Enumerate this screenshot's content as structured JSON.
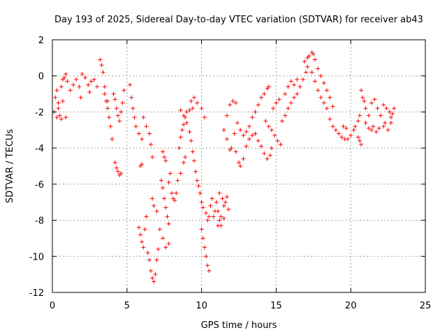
{
  "chart_data": {
    "type": "scatter",
    "title": "Day 193 of 2025, Sidereal Day-to-day VTEC variation (SDTVAR) for receiver ab43",
    "xlabel": "GPS time / hours",
    "ylabel": "SDTVAR / TECUs",
    "xlim": [
      0,
      25
    ],
    "ylim": [
      -12,
      2
    ],
    "xticks": [
      0,
      5,
      10,
      15,
      20,
      25
    ],
    "yticks": [
      -12,
      -10,
      -8,
      -6,
      -4,
      -2,
      0,
      2
    ],
    "grid": true,
    "marker": "+",
    "series": [
      {
        "name": "SDTVAR",
        "color": "#ff0000",
        "points": [
          [
            0.1,
            -2.0
          ],
          [
            0.2,
            -1.2
          ],
          [
            0.3,
            -0.8
          ],
          [
            0.4,
            -1.5
          ],
          [
            0.5,
            -2.2
          ],
          [
            0.6,
            -0.6
          ],
          [
            0.7,
            -0.2
          ],
          [
            0.8,
            -0.1
          ],
          [
            0.9,
            0.1
          ],
          [
            1.0,
            -0.3
          ],
          [
            0.3,
            -2.3
          ],
          [
            0.6,
            -2.4
          ],
          [
            0.9,
            -2.3
          ],
          [
            0.4,
            -1.8
          ],
          [
            0.7,
            -1.4
          ],
          [
            1.2,
            -0.8
          ],
          [
            1.4,
            -0.5
          ],
          [
            1.6,
            -0.2
          ],
          [
            1.8,
            -0.6
          ],
          [
            2.0,
            0.1
          ],
          [
            2.2,
            -0.1
          ],
          [
            2.4,
            -0.5
          ],
          [
            2.6,
            -0.3
          ],
          [
            2.8,
            -0.2
          ],
          [
            3.0,
            -0.6
          ],
          [
            1.9,
            -1.2
          ],
          [
            2.5,
            -0.9
          ],
          [
            3.2,
            0.9
          ],
          [
            3.3,
            0.6
          ],
          [
            3.4,
            0.2
          ],
          [
            3.5,
            -0.6
          ],
          [
            3.6,
            -1.4
          ],
          [
            3.7,
            -1.8
          ],
          [
            3.8,
            -2.3
          ],
          [
            3.9,
            -2.8
          ],
          [
            4.0,
            -3.5
          ],
          [
            3.5,
            -1.0
          ],
          [
            3.7,
            -1.4
          ],
          [
            4.1,
            -1.0
          ],
          [
            4.2,
            -1.3
          ],
          [
            4.3,
            -1.8
          ],
          [
            4.4,
            -2.2
          ],
          [
            4.5,
            -2.5
          ],
          [
            4.6,
            -2.0
          ],
          [
            4.7,
            -1.5
          ],
          [
            4.8,
            -0.8
          ],
          [
            4.2,
            -4.8
          ],
          [
            4.3,
            -5.1
          ],
          [
            4.4,
            -5.3
          ],
          [
            4.5,
            -5.5
          ],
          [
            4.6,
            -5.4
          ],
          [
            5.2,
            -0.5
          ],
          [
            5.3,
            -1.2
          ],
          [
            5.4,
            -1.8
          ],
          [
            5.5,
            -2.3
          ],
          [
            5.6,
            -2.8
          ],
          [
            5.8,
            -3.2
          ],
          [
            6.0,
            -3.5
          ],
          [
            6.1,
            -2.3
          ],
          [
            6.3,
            -2.8
          ],
          [
            6.5,
            -3.2
          ],
          [
            6.6,
            -3.8
          ],
          [
            6.7,
            -4.5
          ],
          [
            5.9,
            -5.0
          ],
          [
            6.0,
            -4.9
          ],
          [
            5.8,
            -8.4
          ],
          [
            5.9,
            -8.8
          ],
          [
            6.0,
            -9.2
          ],
          [
            6.1,
            -9.5
          ],
          [
            6.2,
            -8.5
          ],
          [
            6.3,
            -7.8
          ],
          [
            6.4,
            -9.8
          ],
          [
            6.5,
            -10.2
          ],
          [
            6.6,
            -10.8
          ],
          [
            6.7,
            -11.2
          ],
          [
            6.8,
            -11.4
          ],
          [
            6.9,
            -11.0
          ],
          [
            7.0,
            -10.2
          ],
          [
            7.1,
            -9.6
          ],
          [
            6.7,
            -6.8
          ],
          [
            6.8,
            -7.2
          ],
          [
            7.0,
            -7.5
          ],
          [
            7.3,
            -5.8
          ],
          [
            7.4,
            -6.2
          ],
          [
            7.5,
            -6.8
          ],
          [
            7.6,
            -7.3
          ],
          [
            7.7,
            -7.8
          ],
          [
            7.8,
            -8.2
          ],
          [
            7.2,
            -8.5
          ],
          [
            7.4,
            -9.0
          ],
          [
            7.6,
            -9.5
          ],
          [
            7.8,
            -9.3
          ],
          [
            7.4,
            -4.2
          ],
          [
            7.5,
            -4.5
          ],
          [
            7.6,
            -4.7
          ],
          [
            7.8,
            -5.9
          ],
          [
            7.9,
            -5.4
          ],
          [
            8.0,
            -6.5
          ],
          [
            8.1,
            -6.8
          ],
          [
            8.2,
            -6.9
          ],
          [
            8.3,
            -6.5
          ],
          [
            8.4,
            -5.8
          ],
          [
            8.6,
            -5.4
          ],
          [
            8.8,
            -4.8
          ],
          [
            8.9,
            -4.5
          ],
          [
            8.5,
            -4.0
          ],
          [
            8.6,
            -3.4
          ],
          [
            8.7,
            -3.0
          ],
          [
            8.8,
            -2.7
          ],
          [
            8.9,
            -2.3
          ],
          [
            9.0,
            -2.0
          ],
          [
            9.2,
            -1.9
          ],
          [
            9.4,
            -1.8
          ],
          [
            8.6,
            -1.9
          ],
          [
            8.8,
            -2.2
          ],
          [
            9.0,
            -2.6
          ],
          [
            9.2,
            -3.1
          ],
          [
            9.3,
            -3.6
          ],
          [
            9.4,
            -4.2
          ],
          [
            9.5,
            -4.7
          ],
          [
            9.6,
            -5.3
          ],
          [
            9.7,
            -5.8
          ],
          [
            9.8,
            -6.1
          ],
          [
            9.9,
            -6.5
          ],
          [
            10.0,
            -7.0
          ],
          [
            10.1,
            -7.3
          ],
          [
            10.0,
            -8.5
          ],
          [
            10.1,
            -9.0
          ],
          [
            10.2,
            -9.5
          ],
          [
            10.3,
            -10.0
          ],
          [
            10.4,
            -10.5
          ],
          [
            10.5,
            -10.8
          ],
          [
            10.3,
            -7.6
          ],
          [
            10.4,
            -8.0
          ],
          [
            10.5,
            -7.8
          ],
          [
            10.6,
            -7.2
          ],
          [
            10.7,
            -6.8
          ],
          [
            9.3,
            -1.4
          ],
          [
            9.5,
            -1.2
          ],
          [
            9.7,
            -1.5
          ],
          [
            10.0,
            -1.8
          ],
          [
            10.2,
            -2.3
          ],
          [
            10.8,
            -7.8
          ],
          [
            10.9,
            -7.5
          ],
          [
            11.0,
            -7.0
          ],
          [
            11.1,
            -7.5
          ],
          [
            11.2,
            -8.0
          ],
          [
            11.3,
            -7.8
          ],
          [
            11.2,
            -6.5
          ],
          [
            11.4,
            -6.8
          ],
          [
            11.5,
            -7.2
          ],
          [
            11.6,
            -7.0
          ],
          [
            11.7,
            -6.7
          ],
          [
            11.8,
            -7.4
          ],
          [
            11.1,
            -8.3
          ],
          [
            11.3,
            -8.3
          ],
          [
            11.5,
            -7.9
          ],
          [
            11.5,
            -3.0
          ],
          [
            11.7,
            -3.5
          ],
          [
            11.9,
            -4.1
          ],
          [
            12.0,
            -4.0
          ],
          [
            12.2,
            -3.2
          ],
          [
            11.7,
            -2.2
          ],
          [
            11.9,
            -1.6
          ],
          [
            12.1,
            -1.4
          ],
          [
            12.3,
            -1.5
          ],
          [
            12.3,
            -4.2
          ],
          [
            12.5,
            -4.8
          ],
          [
            12.6,
            -5.0
          ],
          [
            12.8,
            -4.6
          ],
          [
            13.0,
            -3.9
          ],
          [
            13.2,
            -3.5
          ],
          [
            13.4,
            -3.3
          ],
          [
            12.4,
            -2.6
          ],
          [
            12.6,
            -3.0
          ],
          [
            12.8,
            -3.3
          ],
          [
            13.0,
            -3.1
          ],
          [
            13.2,
            -2.8
          ],
          [
            13.4,
            -2.3
          ],
          [
            13.6,
            -2.0
          ],
          [
            13.8,
            -1.6
          ],
          [
            14.0,
            -1.2
          ],
          [
            14.2,
            -1.0
          ],
          [
            14.4,
            -0.7
          ],
          [
            14.5,
            -0.6
          ],
          [
            13.6,
            -3.2
          ],
          [
            13.8,
            -3.6
          ],
          [
            14.0,
            -3.9
          ],
          [
            14.2,
            -4.3
          ],
          [
            14.4,
            -4.6
          ],
          [
            14.6,
            -4.4
          ],
          [
            14.7,
            -4.0
          ],
          [
            14.3,
            -2.5
          ],
          [
            14.5,
            -2.8
          ],
          [
            14.7,
            -3.0
          ],
          [
            14.9,
            -3.3
          ],
          [
            15.1,
            -3.6
          ],
          [
            15.3,
            -3.8
          ],
          [
            14.8,
            -1.8
          ],
          [
            15.0,
            -1.5
          ],
          [
            15.2,
            -1.3
          ],
          [
            15.4,
            -2.5
          ],
          [
            15.6,
            -2.2
          ],
          [
            15.8,
            -1.8
          ],
          [
            16.0,
            -1.5
          ],
          [
            15.6,
            -1.0
          ],
          [
            15.8,
            -0.6
          ],
          [
            16.0,
            -0.3
          ],
          [
            16.2,
            -0.5
          ],
          [
            16.4,
            -0.2
          ],
          [
            16.2,
            -1.2
          ],
          [
            16.4,
            -1.0
          ],
          [
            16.6,
            -0.6
          ],
          [
            16.8,
            -0.2
          ],
          [
            17.0,
            0.2
          ],
          [
            17.1,
            0.5
          ],
          [
            16.9,
            0.8
          ],
          [
            17.1,
            1.0
          ],
          [
            17.2,
            1.1
          ],
          [
            17.4,
            1.3
          ],
          [
            17.5,
            1.2
          ],
          [
            17.6,
            0.9
          ],
          [
            17.4,
            0.2
          ],
          [
            17.6,
            -0.3
          ],
          [
            17.8,
            -0.8
          ],
          [
            18.0,
            -1.2
          ],
          [
            18.2,
            -1.5
          ],
          [
            18.4,
            -1.8
          ],
          [
            17.8,
            0.4
          ],
          [
            18.0,
            0.0
          ],
          [
            18.2,
            -0.4
          ],
          [
            18.4,
            -0.8
          ],
          [
            18.6,
            -1.2
          ],
          [
            18.8,
            -1.7
          ],
          [
            18.6,
            -2.4
          ],
          [
            18.8,
            -2.8
          ],
          [
            19.0,
            -3.0
          ],
          [
            19.2,
            -3.2
          ],
          [
            19.4,
            -3.4
          ],
          [
            19.6,
            -3.5
          ],
          [
            19.8,
            -3.5
          ],
          [
            20.0,
            -3.3
          ],
          [
            20.2,
            -3.0
          ],
          [
            19.5,
            -2.8
          ],
          [
            19.7,
            -2.9
          ],
          [
            20.3,
            -2.8
          ],
          [
            20.5,
            -2.5
          ],
          [
            20.6,
            -2.2
          ],
          [
            20.5,
            -3.4
          ],
          [
            20.6,
            -3.6
          ],
          [
            20.7,
            -3.8
          ],
          [
            20.7,
            -0.8
          ],
          [
            20.8,
            -1.2
          ],
          [
            20.9,
            -1.4
          ],
          [
            21.0,
            -1.8
          ],
          [
            21.2,
            -2.2
          ],
          [
            21.0,
            -2.6
          ],
          [
            21.2,
            -2.9
          ],
          [
            21.4,
            -3.0
          ],
          [
            21.5,
            -2.8
          ],
          [
            21.4,
            -1.5
          ],
          [
            21.6,
            -1.3
          ],
          [
            21.8,
            -1.8
          ],
          [
            22.0,
            -2.2
          ],
          [
            22.2,
            -2.8
          ],
          [
            21.7,
            -3.1
          ],
          [
            21.9,
            -2.9
          ],
          [
            22.2,
            -1.6
          ],
          [
            22.4,
            -1.8
          ],
          [
            22.6,
            -2.0
          ],
          [
            22.7,
            -2.3
          ],
          [
            22.8,
            -2.1
          ],
          [
            22.9,
            -1.8
          ],
          [
            22.3,
            -2.6
          ],
          [
            22.5,
            -3.0
          ],
          [
            22.7,
            -2.6
          ]
        ]
      }
    ]
  }
}
